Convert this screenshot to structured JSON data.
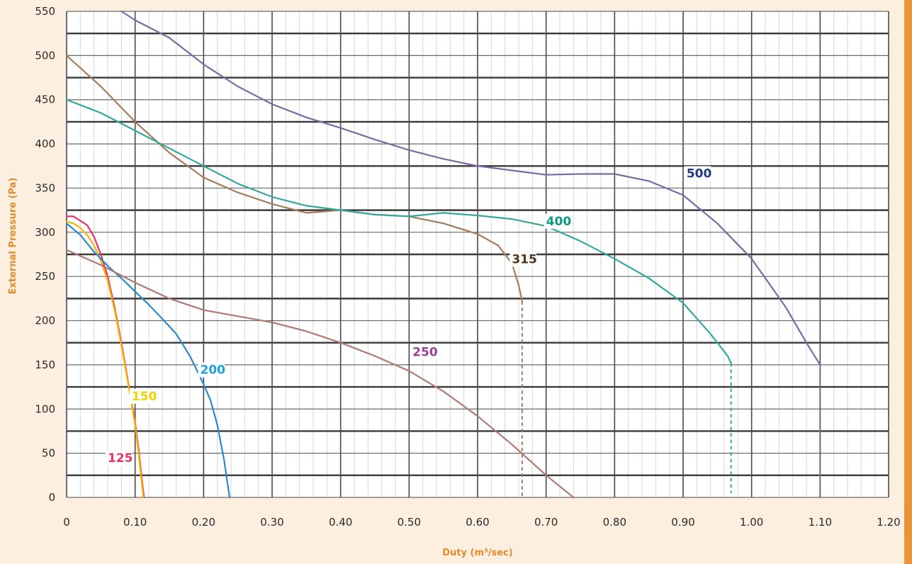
{
  "chart_data": {
    "type": "line",
    "title": "",
    "xlabel": "Duty (m³/sec)",
    "ylabel": "External Pressure (Pa)",
    "xlim": [
      0,
      1.2
    ],
    "ylim": [
      0,
      550
    ],
    "x_ticks": [
      "0",
      "0.10",
      "0.20",
      "0.30",
      "0.40",
      "0.50",
      "0.60",
      "0.70",
      "0.80",
      "0.90",
      "1.00",
      "1.10",
      "1.20"
    ],
    "y_ticks": [
      "0",
      "50",
      "100",
      "150",
      "200",
      "250",
      "300",
      "350",
      "400",
      "450",
      "500",
      "550"
    ],
    "grid": true,
    "legend": "inline labels",
    "series": [
      {
        "name": "125",
        "color": "#e8326a",
        "label_color": "#e8326a",
        "label_at": [
          0.06,
          40
        ],
        "points": [
          [
            0,
            318
          ],
          [
            0.01,
            318
          ],
          [
            0.02,
            313
          ],
          [
            0.03,
            308
          ],
          [
            0.04,
            295
          ],
          [
            0.05,
            275
          ],
          [
            0.06,
            250
          ],
          [
            0.07,
            215
          ],
          [
            0.08,
            175
          ],
          [
            0.09,
            130
          ],
          [
            0.1,
            85
          ],
          [
            0.105,
            55
          ],
          [
            0.11,
            20
          ],
          [
            0.113,
            0
          ]
        ]
      },
      {
        "name": "150",
        "color": "#f5b400",
        "label_color": "#f2d000",
        "label_at": [
          0.095,
          110
        ],
        "points": [
          [
            0,
            312
          ],
          [
            0.01,
            310
          ],
          [
            0.02,
            305
          ],
          [
            0.03,
            297
          ],
          [
            0.04,
            285
          ],
          [
            0.05,
            268
          ],
          [
            0.06,
            245
          ],
          [
            0.07,
            212
          ],
          [
            0.08,
            172
          ],
          [
            0.09,
            128
          ],
          [
            0.1,
            82
          ],
          [
            0.105,
            50
          ],
          [
            0.11,
            15
          ],
          [
            0.112,
            0
          ]
        ]
      },
      {
        "name": "200",
        "color": "#2a8ac9",
        "label_color": "#1da0dc",
        "label_at": [
          0.195,
          140
        ],
        "points": [
          [
            0,
            310
          ],
          [
            0.02,
            297
          ],
          [
            0.04,
            278
          ],
          [
            0.06,
            262
          ],
          [
            0.08,
            248
          ],
          [
            0.1,
            233
          ],
          [
            0.12,
            218
          ],
          [
            0.14,
            202
          ],
          [
            0.16,
            185
          ],
          [
            0.18,
            160
          ],
          [
            0.2,
            128
          ],
          [
            0.21,
            110
          ],
          [
            0.22,
            82
          ],
          [
            0.23,
            42
          ],
          [
            0.235,
            15
          ],
          [
            0.238,
            0
          ]
        ]
      },
      {
        "name": "250",
        "color": "#b07a74",
        "label_color": "#9c3d9a",
        "label_at": [
          0.505,
          160
        ],
        "points": [
          [
            0,
            280
          ],
          [
            0.05,
            263
          ],
          [
            0.1,
            243
          ],
          [
            0.15,
            225
          ],
          [
            0.2,
            212
          ],
          [
            0.25,
            205
          ],
          [
            0.3,
            198
          ],
          [
            0.35,
            188
          ],
          [
            0.4,
            175
          ],
          [
            0.45,
            160
          ],
          [
            0.5,
            143
          ],
          [
            0.55,
            120
          ],
          [
            0.6,
            92
          ],
          [
            0.65,
            60
          ],
          [
            0.7,
            25
          ],
          [
            0.74,
            0
          ]
        ]
      },
      {
        "name": "315",
        "color": "#a67b5c",
        "label_color": "#4b3516",
        "label_at": [
          0.65,
          265
        ],
        "points": [
          [
            0,
            500
          ],
          [
            0.05,
            465
          ],
          [
            0.1,
            425
          ],
          [
            0.15,
            390
          ],
          [
            0.2,
            362
          ],
          [
            0.25,
            345
          ],
          [
            0.3,
            332
          ],
          [
            0.35,
            322
          ],
          [
            0.4,
            325
          ],
          [
            0.45,
            320
          ],
          [
            0.5,
            318
          ],
          [
            0.55,
            310
          ],
          [
            0.6,
            298
          ],
          [
            0.63,
            285
          ],
          [
            0.65,
            265
          ],
          [
            0.66,
            240
          ],
          [
            0.665,
            222
          ]
        ]
      },
      {
        "name": "400",
        "color": "#35a89e",
        "label_color": "#0c9a80",
        "label_at": [
          0.7,
          308
        ],
        "points": [
          [
            0,
            450
          ],
          [
            0.05,
            435
          ],
          [
            0.1,
            415
          ],
          [
            0.15,
            395
          ],
          [
            0.2,
            375
          ],
          [
            0.25,
            355
          ],
          [
            0.3,
            340
          ],
          [
            0.35,
            330
          ],
          [
            0.4,
            325
          ],
          [
            0.45,
            320
          ],
          [
            0.5,
            318
          ],
          [
            0.55,
            322
          ],
          [
            0.6,
            319
          ],
          [
            0.65,
            315
          ],
          [
            0.7,
            307
          ],
          [
            0.75,
            290
          ],
          [
            0.8,
            270
          ],
          [
            0.85,
            248
          ],
          [
            0.9,
            220
          ],
          [
            0.94,
            185
          ],
          [
            0.965,
            160
          ],
          [
            0.97,
            152
          ]
        ]
      },
      {
        "name": "500",
        "color": "#7b6aa6",
        "label_color": "#1e3c8a",
        "label_at": [
          0.905,
          362
        ],
        "points": [
          [
            0.08,
            550
          ],
          [
            0.1,
            540
          ],
          [
            0.15,
            520
          ],
          [
            0.2,
            490
          ],
          [
            0.25,
            465
          ],
          [
            0.3,
            445
          ],
          [
            0.35,
            430
          ],
          [
            0.4,
            418
          ],
          [
            0.45,
            405
          ],
          [
            0.5,
            393
          ],
          [
            0.55,
            383
          ],
          [
            0.6,
            375
          ],
          [
            0.65,
            370
          ],
          [
            0.7,
            365
          ],
          [
            0.75,
            366
          ],
          [
            0.8,
            366
          ],
          [
            0.85,
            358
          ],
          [
            0.9,
            342
          ],
          [
            0.95,
            310
          ],
          [
            1.0,
            270
          ],
          [
            1.05,
            215
          ],
          [
            1.08,
            175
          ],
          [
            1.1,
            150
          ]
        ]
      }
    ],
    "dashed_drops": [
      {
        "x": 0.665,
        "from": 222,
        "to": 0,
        "color": "#a67b5c"
      },
      {
        "x": 0.97,
        "from": 152,
        "to": 5,
        "color": "#35a89e"
      },
      {
        "x": 1.1,
        "from": 150,
        "to": 0,
        "color": "#7b6aa6"
      }
    ]
  }
}
